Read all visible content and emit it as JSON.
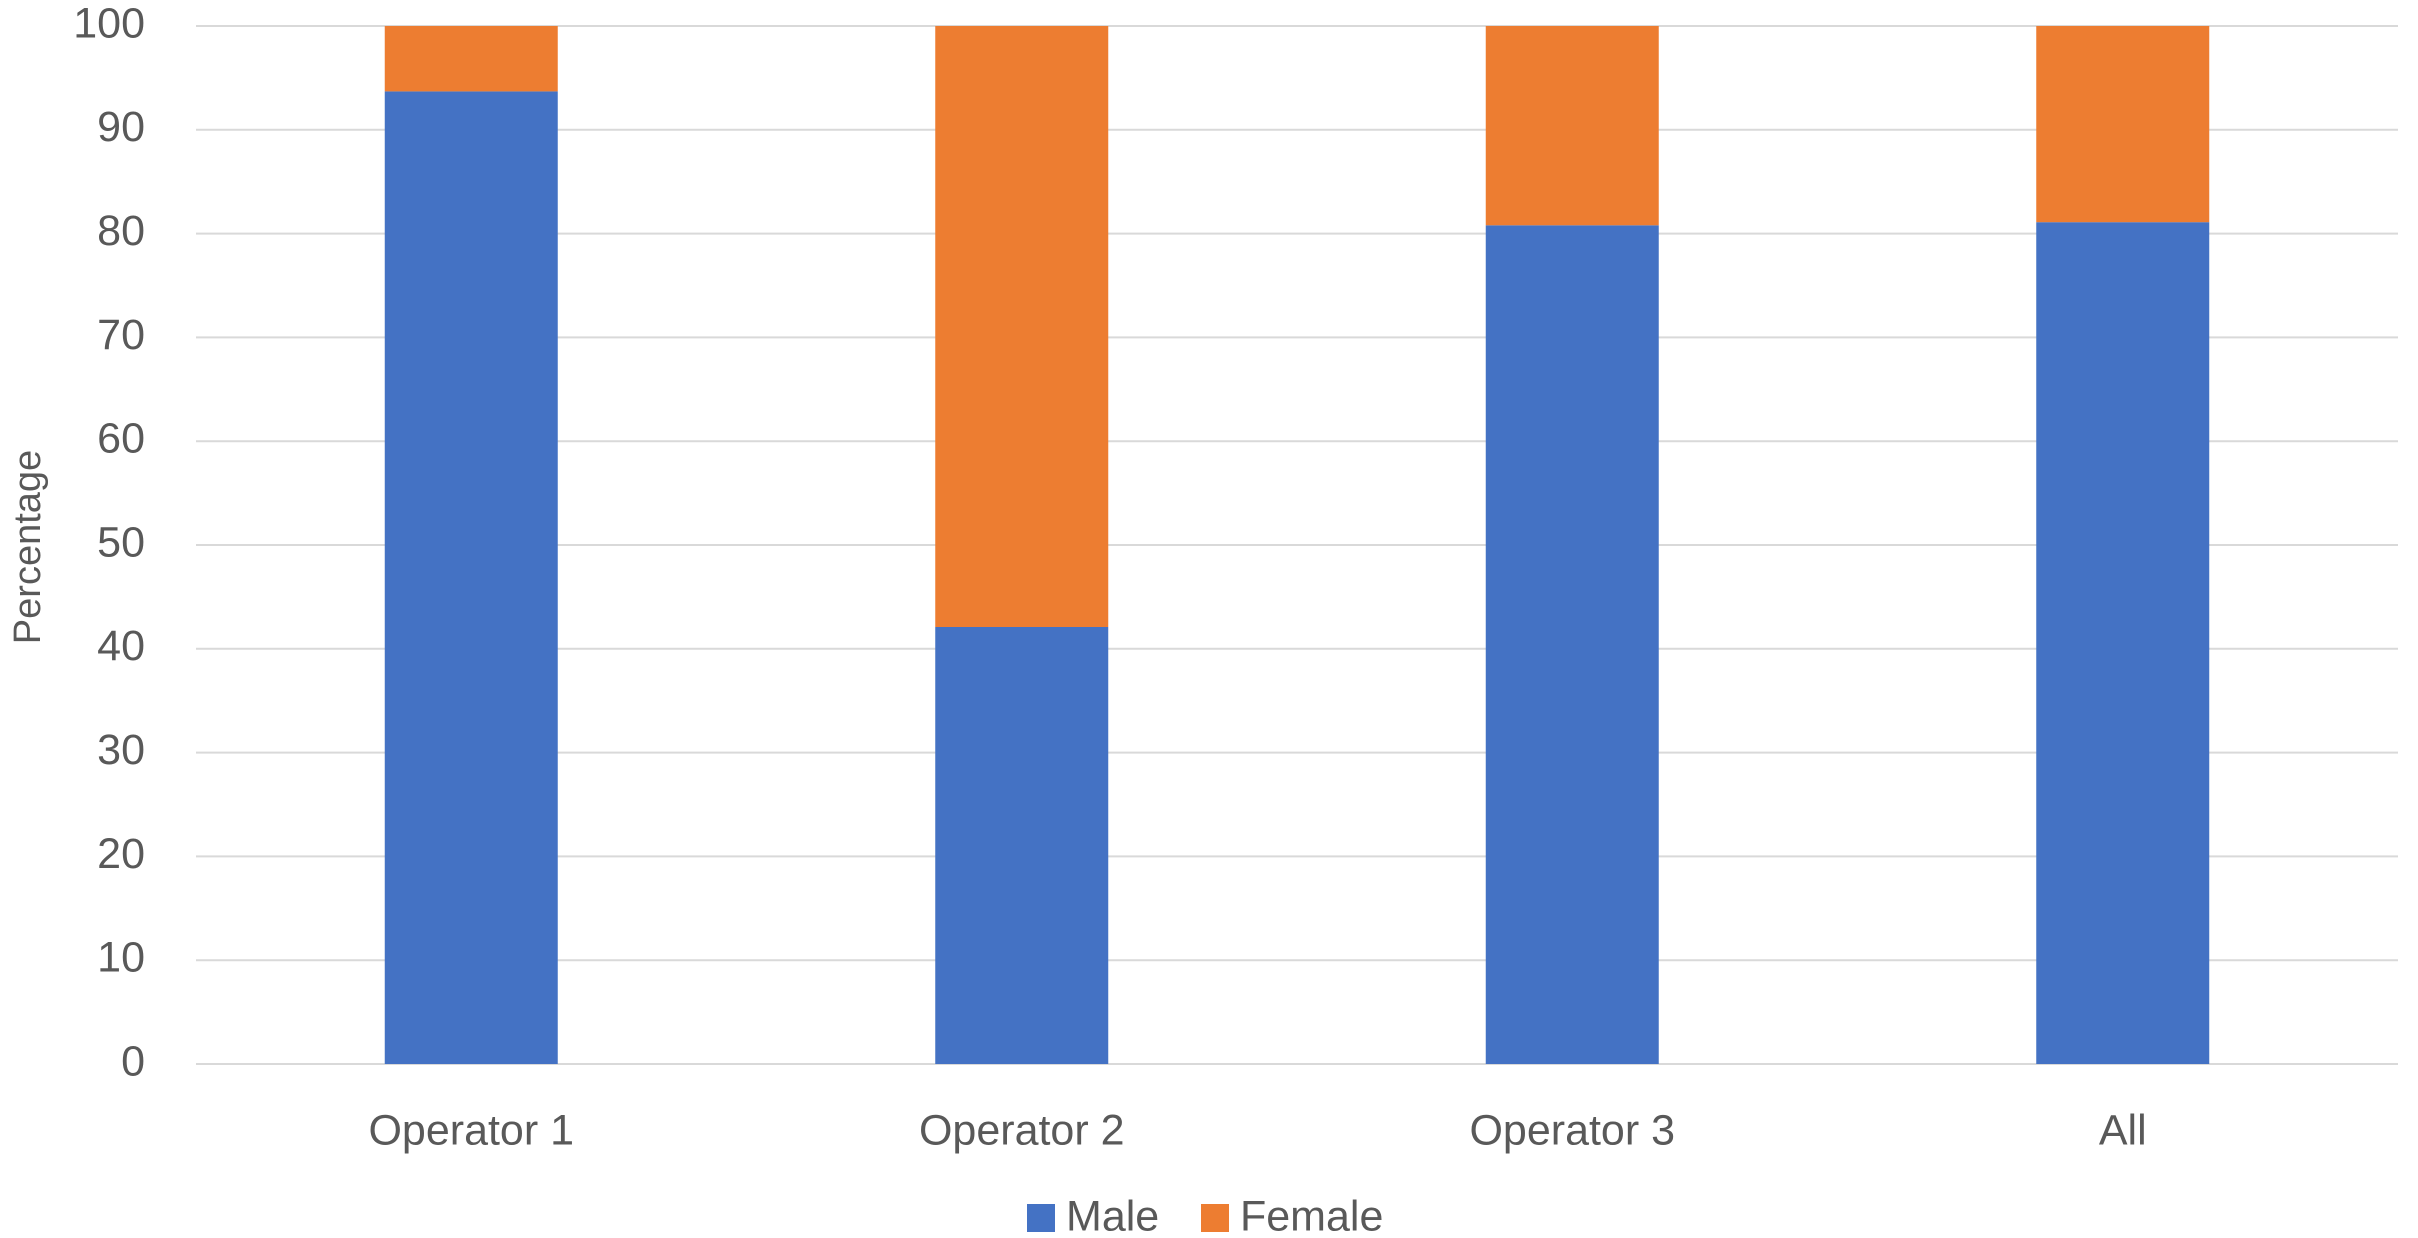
{
  "chart_data": {
    "type": "stacked_bar",
    "y_label": "Percentage",
    "categories": [
      "Operator 1",
      "Operator 2",
      "Operator 3",
      "All"
    ],
    "series": [
      {
        "name": "Male",
        "color": "#4472c4",
        "values": [
          93.7,
          42.1,
          80.8,
          81.1
        ]
      },
      {
        "name": "Female",
        "color": "#ed7d31",
        "values": [
          6.3,
          57.9,
          19.2,
          18.9
        ]
      }
    ],
    "ylim": [
      0,
      100
    ],
    "yticks": [
      0,
      10,
      20,
      30,
      40,
      50,
      60,
      70,
      80,
      90,
      100
    ],
    "grid": true,
    "legend": "bottom"
  }
}
